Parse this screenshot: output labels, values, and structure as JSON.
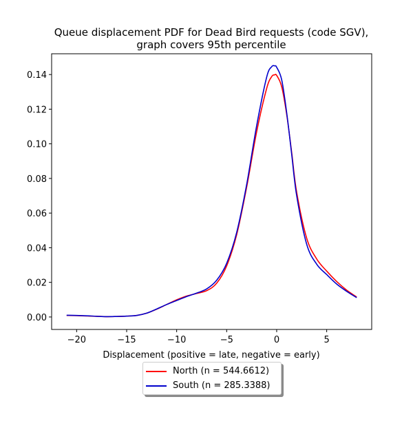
{
  "chart_data": {
    "type": "line",
    "title_line1": "Queue displacement PDF for Dead Bird  requests (code SGV),",
    "title_line2": "graph covers 95th percentile",
    "xlabel": "Displacement (positive = late, negative = early)",
    "ylabel": "",
    "xlim": [
      -22.5,
      9.5
    ],
    "ylim": [
      -0.0072,
      0.152
    ],
    "xticks": [
      -20,
      -15,
      -10,
      -5,
      0,
      5
    ],
    "xtick_labels": [
      "−20",
      "−15",
      "−10",
      "−5",
      "0",
      "5"
    ],
    "yticks": [
      0.0,
      0.02,
      0.04,
      0.06,
      0.08,
      0.1,
      0.12,
      0.14
    ],
    "ytick_labels": [
      "0.00",
      "0.02",
      "0.04",
      "0.06",
      "0.08",
      "0.10",
      "0.12",
      "0.14"
    ],
    "grid": false,
    "legend_position": "below",
    "series": [
      {
        "name": "North (n = 544.6612)",
        "color": "#ff0000",
        "x": [
          -21,
          -20,
          -19,
          -18,
          -17,
          -16,
          -15,
          -14,
          -13,
          -12,
          -11,
          -10,
          -9,
          -8,
          -7,
          -6,
          -5,
          -4,
          -3,
          -2,
          -1,
          -0.5,
          -0.2,
          0,
          0.5,
          1,
          1.5,
          2,
          3,
          4,
          5,
          6,
          7,
          8
        ],
        "y": [
          0.0009,
          0.0008,
          0.0006,
          0.0004,
          0.0002,
          0.0003,
          0.0005,
          0.0009,
          0.0022,
          0.0045,
          0.0072,
          0.0099,
          0.0121,
          0.0136,
          0.0152,
          0.0195,
          0.0295,
          0.0475,
          0.075,
          0.107,
          0.132,
          0.1388,
          0.1398,
          0.1395,
          0.133,
          0.117,
          0.095,
          0.072,
          0.0455,
          0.0335,
          0.0265,
          0.0205,
          0.0155,
          0.0115
        ]
      },
      {
        "name": "South (n = 285.3388)",
        "color": "#0000cc",
        "x": [
          -21,
          -20,
          -19,
          -18,
          -17,
          -16,
          -15,
          -14,
          -13,
          -12,
          -11,
          -10,
          -9,
          -8,
          -7,
          -6,
          -5,
          -4,
          -3,
          -2,
          -1,
          -0.5,
          -0.2,
          0,
          0.5,
          1,
          1.5,
          2,
          3,
          4,
          5,
          6,
          7,
          8
        ],
        "y": [
          0.001,
          0.0009,
          0.0007,
          0.0004,
          0.0002,
          0.0003,
          0.0005,
          0.0009,
          0.0022,
          0.0046,
          0.0072,
          0.0095,
          0.0118,
          0.0138,
          0.0162,
          0.0212,
          0.031,
          0.0488,
          0.0765,
          0.1105,
          0.1385,
          0.1445,
          0.145,
          0.1442,
          0.137,
          0.118,
          0.094,
          0.07,
          0.042,
          0.0305,
          0.0245,
          0.019,
          0.0148,
          0.0112
        ]
      }
    ]
  }
}
